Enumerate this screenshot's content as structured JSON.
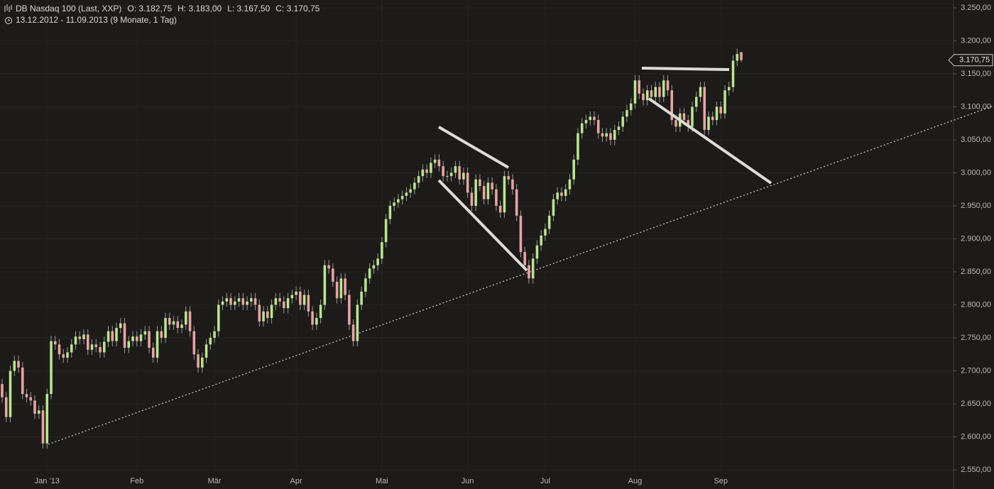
{
  "chart_data": {
    "type": "candlestick",
    "title": "DB Nasdaq 100 (Last, XXP)",
    "ohlc_labels": [
      "O: 3.182,75",
      "H: 3.183,00",
      "L: 3.167,50",
      "C: 3.170,75"
    ],
    "range_label": "13.12.2012 - 11.09.2013 (9 Monate, 1 Tag)",
    "up_color": "#b8e68c",
    "down_color": "#eba3a3",
    "wick_color": "#9a9a96",
    "grid": true,
    "ylim": [
      2550,
      3250
    ],
    "yticks": [
      {
        "value": 2550,
        "label": "2.550,00"
      },
      {
        "value": 2600,
        "label": "2.600,00"
      },
      {
        "value": 2650,
        "label": "2.650,00"
      },
      {
        "value": 2700,
        "label": "2.700,00"
      },
      {
        "value": 2750,
        "label": "2.750,00"
      },
      {
        "value": 2800,
        "label": "2.800,00"
      },
      {
        "value": 2850,
        "label": "2.850,00"
      },
      {
        "value": 2900,
        "label": "2.900,00"
      },
      {
        "value": 2950,
        "label": "2.950,00"
      },
      {
        "value": 3000,
        "label": "3.000,00"
      },
      {
        "value": 3050,
        "label": "3.050,00"
      },
      {
        "value": 3100,
        "label": "3.100,00"
      },
      {
        "value": 3150,
        "label": "3.150,00"
      },
      {
        "value": 3200,
        "label": "3.200,00"
      },
      {
        "value": 3250,
        "label": "3.250,00"
      }
    ],
    "last_price": {
      "value": 3170.75,
      "label": "3.170,75"
    },
    "categories": [
      null,
      null,
      null,
      null,
      null,
      null,
      null,
      null,
      null,
      null,
      null,
      "Jan '13",
      null,
      null,
      null,
      null,
      null,
      null,
      null,
      null,
      null,
      null,
      null,
      null,
      null,
      null,
      null,
      null,
      null,
      null,
      null,
      null,
      null,
      "Feb",
      null,
      null,
      null,
      null,
      null,
      null,
      null,
      null,
      null,
      null,
      null,
      null,
      null,
      null,
      null,
      null,
      null,
      null,
      "Mär",
      null,
      null,
      null,
      null,
      null,
      null,
      null,
      null,
      null,
      null,
      null,
      null,
      null,
      null,
      null,
      null,
      null,
      null,
      null,
      "Apr",
      null,
      null,
      null,
      null,
      null,
      null,
      null,
      null,
      null,
      null,
      null,
      null,
      null,
      null,
      null,
      null,
      null,
      null,
      null,
      null,
      "Mai",
      null,
      null,
      null,
      null,
      null,
      null,
      null,
      null,
      null,
      null,
      null,
      null,
      null,
      null,
      null,
      null,
      null,
      null,
      null,
      null,
      "Jun",
      null,
      null,
      null,
      null,
      null,
      null,
      null,
      null,
      null,
      null,
      null,
      null,
      null,
      null,
      null,
      null,
      null,
      null,
      "Jul",
      null,
      null,
      null,
      null,
      null,
      null,
      null,
      null,
      null,
      null,
      null,
      null,
      null,
      null,
      null,
      null,
      null,
      null,
      null,
      null,
      null,
      "Aug",
      null,
      null,
      null,
      null,
      null,
      null,
      null,
      null,
      null,
      null,
      null,
      null,
      null,
      null,
      null,
      null,
      null,
      null,
      null,
      null,
      "Sep",
      null,
      null,
      null,
      null,
      null
    ],
    "open": [
      2680,
      2660,
      2630,
      2700,
      2715,
      2705,
      2665,
      2660,
      2655,
      2635,
      2640,
      2590,
      2665,
      2745,
      2740,
      2725,
      2720,
      2728,
      2740,
      2752,
      2748,
      2755,
      2732,
      2740,
      2736,
      2728,
      2744,
      2760,
      2745,
      2765,
      2772,
      2735,
      2745,
      2752,
      2745,
      2755,
      2760,
      2735,
      2720,
      2760,
      2750,
      2780,
      2770,
      2775,
      2765,
      2770,
      2790,
      2760,
      2725,
      2705,
      2720,
      2740,
      2750,
      2760,
      2800,
      2805,
      2810,
      2800,
      2805,
      2810,
      2800,
      2805,
      2810,
      2800,
      2775,
      2790,
      2780,
      2800,
      2810,
      2805,
      2795,
      2810,
      2815,
      2820,
      2800,
      2815,
      2790,
      2770,
      2780,
      2800,
      2860,
      2855,
      2835,
      2810,
      2840,
      2815,
      2770,
      2745,
      2800,
      2820,
      2840,
      2855,
      2860,
      2870,
      2895,
      2930,
      2950,
      2955,
      2960,
      2965,
      2970,
      2975,
      2985,
      2995,
      3005,
      3000,
      3015,
      3020,
      3010,
      2995,
      2995,
      3000,
      3010,
      2990,
      3000,
      2970,
      2950,
      2990,
      2980,
      2960,
      2985,
      2975,
      2950,
      2940,
      2995,
      2990,
      2975,
      2935,
      2880,
      2860,
      2840,
      2870,
      2890,
      2905,
      2915,
      2935,
      2960,
      2970,
      2965,
      2975,
      2990,
      3020,
      3060,
      3075,
      3080,
      3085,
      3080,
      3060,
      3055,
      3060,
      3050,
      3065,
      3070,
      3085,
      3095,
      3105,
      3140,
      3120,
      3110,
      3125,
      3115,
      3130,
      3115,
      3140,
      3125,
      3080,
      3070,
      3090,
      3080,
      3070,
      3100,
      3115,
      3130,
      3065,
      3085,
      3080,
      3100,
      3090,
      3125,
      3130,
      3170,
      3182.75
    ],
    "high": [
      2688,
      2668,
      2708,
      2723,
      2723,
      2713,
      2673,
      2668,
      2663,
      2648,
      2648,
      2673,
      2753,
      2753,
      2748,
      2733,
      2736,
      2748,
      2760,
      2760,
      2763,
      2763,
      2748,
      2748,
      2744,
      2752,
      2768,
      2768,
      2773,
      2780,
      2780,
      2753,
      2760,
      2760,
      2763,
      2768,
      2768,
      2743,
      2768,
      2768,
      2788,
      2788,
      2783,
      2783,
      2778,
      2798,
      2798,
      2768,
      2733,
      2728,
      2748,
      2758,
      2768,
      2808,
      2813,
      2818,
      2818,
      2813,
      2818,
      2818,
      2813,
      2818,
      2818,
      2808,
      2798,
      2798,
      2808,
      2818,
      2818,
      2813,
      2818,
      2823,
      2828,
      2828,
      2823,
      2823,
      2798,
      2788,
      2808,
      2868,
      2868,
      2863,
      2843,
      2848,
      2848,
      2823,
      2778,
      2808,
      2828,
      2848,
      2863,
      2868,
      2878,
      2903,
      2938,
      2958,
      2963,
      2968,
      2973,
      2978,
      2983,
      2993,
      3003,
      3013,
      3013,
      3023,
      3028,
      3028,
      3018,
      3003,
      3008,
      3018,
      3018,
      3008,
      3008,
      2978,
      2998,
      2998,
      2988,
      2993,
      2993,
      2983,
      2958,
      3003,
      3003,
      2998,
      2983,
      2943,
      2888,
      2868,
      2878,
      2898,
      2913,
      2923,
      2943,
      2968,
      2978,
      2978,
      2983,
      2998,
      3028,
      3068,
      3083,
      3088,
      3093,
      3093,
      3088,
      3068,
      3068,
      3068,
      3073,
      3078,
      3093,
      3103,
      3113,
      3148,
      3148,
      3128,
      3133,
      3133,
      3138,
      3138,
      3148,
      3148,
      3133,
      3088,
      3098,
      3098,
      3088,
      3108,
      3123,
      3138,
      3138,
      3093,
      3093,
      3108,
      3108,
      3133,
      3138,
      3178,
      3188,
      3183
    ],
    "low": [
      2652,
      2622,
      2622,
      2692,
      2697,
      2657,
      2652,
      2647,
      2627,
      2627,
      2582,
      2582,
      2657,
      2732,
      2717,
      2712,
      2712,
      2720,
      2732,
      2740,
      2740,
      2724,
      2724,
      2728,
      2720,
      2720,
      2736,
      2737,
      2737,
      2757,
      2727,
      2727,
      2737,
      2737,
      2737,
      2747,
      2727,
      2712,
      2712,
      2742,
      2742,
      2762,
      2762,
      2757,
      2757,
      2762,
      2752,
      2717,
      2697,
      2697,
      2712,
      2732,
      2742,
      2752,
      2792,
      2797,
      2792,
      2792,
      2797,
      2792,
      2792,
      2797,
      2792,
      2767,
      2767,
      2772,
      2772,
      2792,
      2797,
      2787,
      2787,
      2802,
      2807,
      2792,
      2792,
      2782,
      2762,
      2762,
      2772,
      2792,
      2847,
      2827,
      2802,
      2802,
      2807,
      2762,
      2737,
      2737,
      2792,
      2812,
      2832,
      2847,
      2852,
      2862,
      2887,
      2922,
      2942,
      2947,
      2952,
      2957,
      2962,
      2967,
      2977,
      2987,
      2992,
      2992,
      3007,
      3002,
      2987,
      2987,
      2987,
      2992,
      2982,
      2982,
      2962,
      2942,
      2942,
      2972,
      2952,
      2952,
      2967,
      2942,
      2932,
      2932,
      2982,
      2967,
      2927,
      2872,
      2852,
      2832,
      2832,
      2862,
      2882,
      2897,
      2907,
      2927,
      2952,
      2957,
      2957,
      2967,
      2982,
      3012,
      3052,
      3067,
      3072,
      3072,
      3052,
      3047,
      3047,
      3042,
      3042,
      3057,
      3062,
      3077,
      3087,
      3097,
      3112,
      3102,
      3102,
      3107,
      3107,
      3107,
      3107,
      3117,
      3072,
      3062,
      3062,
      3072,
      3062,
      3062,
      3092,
      3107,
      3057,
      3057,
      3072,
      3072,
      3082,
      3082,
      3117,
      3122,
      3162,
      3167.5
    ],
    "close": [
      2660,
      2630,
      2700,
      2715,
      2705,
      2665,
      2660,
      2655,
      2635,
      2640,
      2590,
      2665,
      2745,
      2740,
      2725,
      2720,
      2728,
      2740,
      2752,
      2748,
      2755,
      2732,
      2740,
      2736,
      2728,
      2744,
      2760,
      2745,
      2765,
      2772,
      2735,
      2745,
      2752,
      2745,
      2755,
      2760,
      2735,
      2720,
      2760,
      2750,
      2780,
      2770,
      2775,
      2765,
      2770,
      2790,
      2760,
      2725,
      2705,
      2720,
      2740,
      2750,
      2760,
      2800,
      2805,
      2810,
      2800,
      2805,
      2810,
      2800,
      2805,
      2810,
      2800,
      2775,
      2790,
      2780,
      2800,
      2810,
      2805,
      2795,
      2810,
      2815,
      2820,
      2800,
      2815,
      2790,
      2770,
      2780,
      2800,
      2860,
      2855,
      2835,
      2810,
      2840,
      2815,
      2770,
      2745,
      2800,
      2820,
      2840,
      2855,
      2860,
      2870,
      2895,
      2930,
      2950,
      2955,
      2960,
      2965,
      2970,
      2975,
      2985,
      2995,
      3005,
      3000,
      3015,
      3020,
      3010,
      2995,
      2995,
      3000,
      3010,
      2990,
      3000,
      2970,
      2950,
      2990,
      2980,
      2960,
      2985,
      2975,
      2950,
      2940,
      2995,
      2990,
      2975,
      2935,
      2880,
      2860,
      2840,
      2870,
      2890,
      2905,
      2915,
      2935,
      2960,
      2970,
      2965,
      2975,
      2990,
      3020,
      3060,
      3075,
      3080,
      3085,
      3080,
      3060,
      3055,
      3060,
      3050,
      3065,
      3070,
      3085,
      3095,
      3105,
      3140,
      3120,
      3110,
      3125,
      3115,
      3130,
      3115,
      3140,
      3125,
      3080,
      3070,
      3090,
      3080,
      3070,
      3100,
      3115,
      3130,
      3065,
      3085,
      3080,
      3100,
      3090,
      3125,
      3130,
      3170,
      3180,
      3170.75
    ]
  }
}
